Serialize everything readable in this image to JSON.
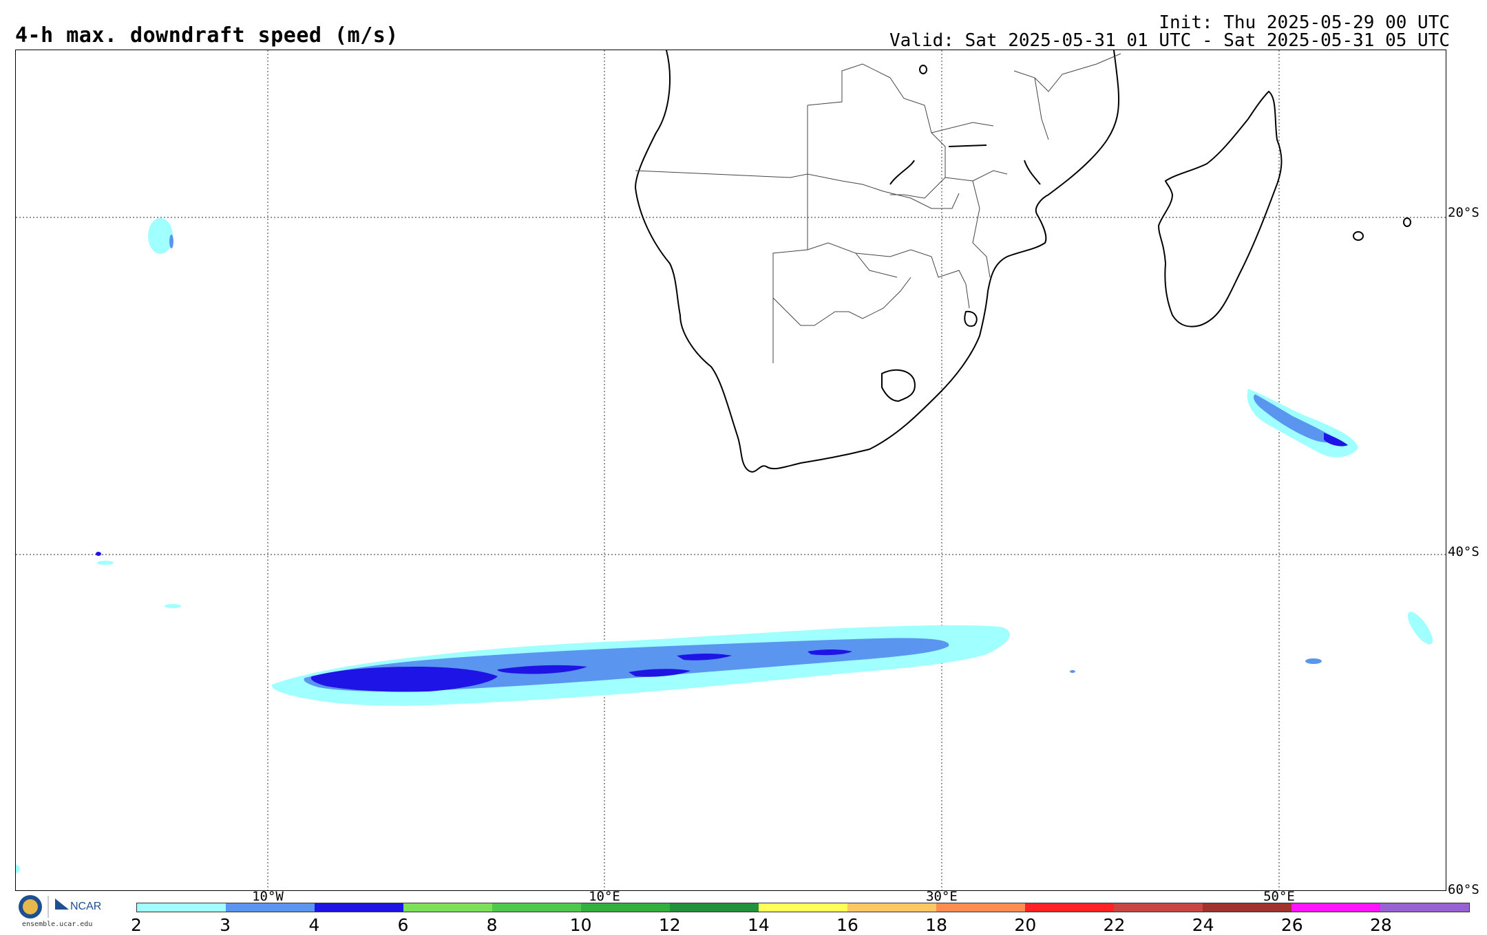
{
  "title": "4-h max. downdraft speed (m/s)",
  "init": "Init: Thu 2025-05-29 00 UTC",
  "valid": "Valid: Sat 2025-05-31 01 UTC - Sat 2025-05-31 05 UTC",
  "lat_labels": [
    "20°S",
    "40°S",
    "60°S"
  ],
  "lon_labels": [
    "10°W",
    "10°E",
    "30°E",
    "50°E"
  ],
  "colorbar": {
    "colors": [
      "#a0ffff",
      "#5a96f0",
      "#1e14e6",
      "#7de05a",
      "#50c84b",
      "#32af3c",
      "#23913c",
      "#ffff5a",
      "#ffc864",
      "#ff8c50",
      "#ff2323",
      "#c84646",
      "#a03232",
      "#ff14ff",
      "#9664d2"
    ],
    "labels": [
      "2",
      "3",
      "4",
      "6",
      "8",
      "10",
      "12",
      "14",
      "16",
      "18",
      "20",
      "22",
      "24",
      "26",
      "28"
    ]
  },
  "logo": {
    "org": "NCAR",
    "site": "ensemble.ucar.edu"
  }
}
